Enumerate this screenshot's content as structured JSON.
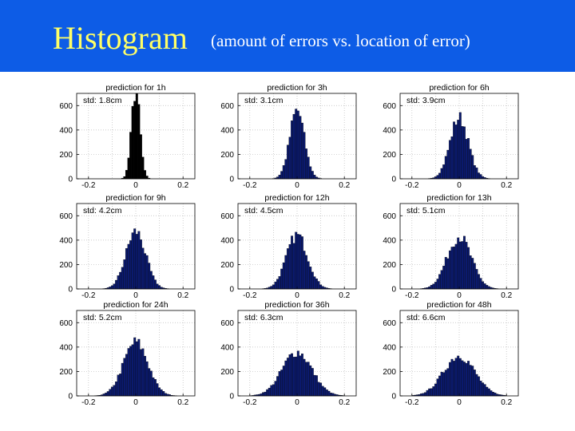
{
  "slide": {
    "title": "Histogram",
    "subtitle": "(amount of errors vs. location of error)"
  },
  "colors": {
    "header_bg": "#0d5ce6",
    "title": "#ffff66",
    "subtitle": "#ffffff",
    "bar_dark_blue": "#0b1a6e",
    "bar_black": "#000000"
  },
  "chart_data": [
    {
      "type": "bar",
      "title": "prediction for 1h",
      "annotation": "std: 1.8cm",
      "std": 0.018,
      "peak": 720,
      "xlim": [
        -0.25,
        0.25
      ],
      "ylim": [
        0,
        700
      ],
      "xticks": [
        "-0.2",
        "0",
        "0.2"
      ],
      "yticks": [
        "0",
        "200",
        "400",
        "600"
      ],
      "grid": true,
      "bar_color": "#000000"
    },
    {
      "type": "bar",
      "title": "prediction for 3h",
      "annotation": "std: 3.1cm",
      "std": 0.031,
      "peak": 560,
      "xlim": [
        -0.25,
        0.25
      ],
      "ylim": [
        0,
        700
      ],
      "xticks": [
        "-0.2",
        "0",
        "0.2"
      ],
      "yticks": [
        "0",
        "200",
        "400",
        "600"
      ],
      "grid": true,
      "bar_color": "#0b1a6e"
    },
    {
      "type": "bar",
      "title": "prediction for 6h",
      "annotation": "std: 3.9cm",
      "std": 0.039,
      "peak": 500,
      "xlim": [
        -0.25,
        0.25
      ],
      "ylim": [
        0,
        700
      ],
      "xticks": [
        "-0.2",
        "0",
        "0.2"
      ],
      "yticks": [
        "0",
        "200",
        "400",
        "600"
      ],
      "grid": true,
      "bar_color": "#0b1a6e"
    },
    {
      "type": "bar",
      "title": "prediction for 9h",
      "annotation": "std: 4.2cm",
      "std": 0.042,
      "peak": 470,
      "xlim": [
        -0.25,
        0.25
      ],
      "ylim": [
        0,
        700
      ],
      "xticks": [
        "-0.2",
        "0",
        "0.2"
      ],
      "yticks": [
        "0",
        "200",
        "400",
        "600"
      ],
      "grid": true,
      "bar_color": "#0b1a6e"
    },
    {
      "type": "bar",
      "title": "prediction for 12h",
      "annotation": "std: 4.5cm",
      "std": 0.045,
      "peak": 440,
      "xlim": [
        -0.25,
        0.25
      ],
      "ylim": [
        0,
        700
      ],
      "xticks": [
        "-0.2",
        "0",
        "0.2"
      ],
      "yticks": [
        "0",
        "200",
        "400",
        "600"
      ],
      "grid": true,
      "bar_color": "#0b1a6e"
    },
    {
      "type": "bar",
      "title": "prediction for 13h",
      "annotation": "std: 5.1cm",
      "std": 0.051,
      "peak": 430,
      "xlim": [
        -0.25,
        0.25
      ],
      "ylim": [
        0,
        700
      ],
      "xticks": [
        "-0.2",
        "0",
        "0.2"
      ],
      "yticks": [
        "0",
        "200",
        "400",
        "600"
      ],
      "grid": true,
      "bar_color": "#0b1a6e"
    },
    {
      "type": "bar",
      "title": "prediction for 24h",
      "annotation": "std: 5.2cm",
      "std": 0.052,
      "peak": 440,
      "xlim": [
        -0.25,
        0.25
      ],
      "ylim": [
        0,
        700
      ],
      "xticks": [
        "-0.2",
        "0",
        "0.2"
      ],
      "yticks": [
        "0",
        "200",
        "400",
        "600"
      ],
      "grid": true,
      "bar_color": "#0b1a6e"
    },
    {
      "type": "bar",
      "title": "prediction for 36h",
      "annotation": "std: 6.3cm",
      "std": 0.063,
      "peak": 360,
      "xlim": [
        -0.25,
        0.25
      ],
      "ylim": [
        0,
        700
      ],
      "xticks": [
        "-0.2",
        "0",
        "0.2"
      ],
      "yticks": [
        "0",
        "200",
        "400",
        "600"
      ],
      "grid": true,
      "bar_color": "#0b1a6e"
    },
    {
      "type": "bar",
      "title": "prediction for 48h",
      "annotation": "std: 6.6cm",
      "std": 0.066,
      "peak": 330,
      "xlim": [
        -0.25,
        0.25
      ],
      "ylim": [
        0,
        700
      ],
      "xticks": [
        "-0.2",
        "0",
        "0.2"
      ],
      "yticks": [
        "0",
        "200",
        "400",
        "600"
      ],
      "grid": true,
      "bar_color": "#0b1a6e"
    }
  ]
}
